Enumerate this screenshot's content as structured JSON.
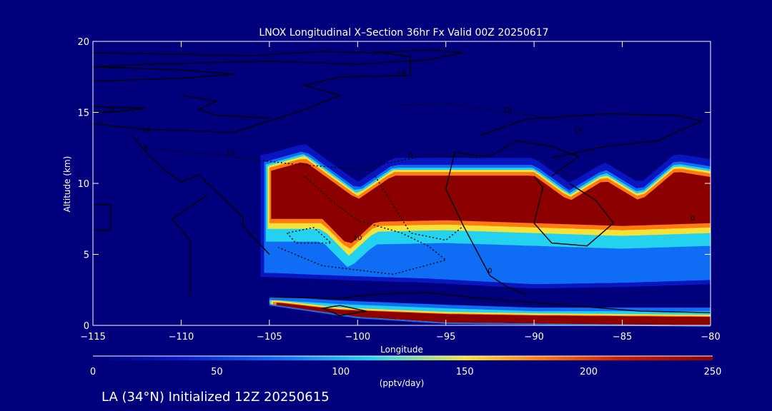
{
  "chart_data": {
    "type": "heatmap",
    "title": "LNOX Longitudinal X–Section 36hr  Fx Valid 00Z 20250617",
    "xlabel": "Longitude",
    "ylabel": "Altitude (km)",
    "xlim": [
      -115,
      -80
    ],
    "ylim": [
      0,
      20
    ],
    "xticks": [
      -115,
      -110,
      -105,
      -100,
      -95,
      -90,
      -85,
      -80
    ],
    "xtick_labels": [
      "−115",
      "−110",
      "−105",
      "−100",
      "−95",
      "−90",
      "−85",
      "−80"
    ],
    "yticks": [
      0,
      5,
      10,
      15,
      20
    ],
    "ytick_labels": [
      "0",
      "5",
      "10",
      "15",
      "20"
    ],
    "colorbar": {
      "min": 0,
      "max": 250,
      "ticks": [
        0,
        50,
        100,
        150,
        200,
        250
      ],
      "tick_labels": [
        "0",
        "50",
        "100",
        "150",
        "200",
        "250"
      ],
      "label": "(pptv/day)"
    },
    "field_colors": {
      "background": "#00007c",
      "low": "#0a18c8",
      "mid_blue": "#0f6cf5",
      "cyan": "#22d2ee",
      "yellow": "#f4e23a",
      "orange": "#ff7a10",
      "high": "#8c0000"
    },
    "upper_plume": {
      "lon_start": -105.3,
      "lon_end": -80,
      "top_km": [
        [
          -105.3,
          11.5
        ],
        [
          -103,
          12.3
        ],
        [
          -100,
          9.6
        ],
        [
          -98,
          11.3
        ],
        [
          -90,
          11.3
        ],
        [
          -88,
          9.5
        ],
        [
          -86,
          11.0
        ],
        [
          -84,
          9.5
        ],
        [
          -82,
          11.6
        ],
        [
          -80,
          11.2
        ]
      ],
      "core_bottom_km": [
        [
          -105.3,
          7.5
        ],
        [
          -102,
          7.5
        ],
        [
          -100.5,
          5.6
        ],
        [
          -99,
          7.3
        ],
        [
          -95,
          7.4
        ],
        [
          -85,
          7.0
        ],
        [
          -80,
          7.2
        ]
      ],
      "halo_bottom_km": [
        [
          -105,
          3.7
        ],
        [
          -101,
          3.5
        ],
        [
          -96,
          3.3
        ],
        [
          -90,
          2.9
        ],
        [
          -85,
          3.0
        ],
        [
          -80,
          3.2
        ]
      ]
    },
    "boundary_layer": {
      "lon_start": -105,
      "lon_end": -80,
      "top_km": [
        [
          -105,
          1.8
        ],
        [
          -101,
          1.5
        ],
        [
          -95,
          1.2
        ],
        [
          -90,
          1.0
        ],
        [
          -85,
          1.0
        ],
        [
          -80,
          1.0
        ]
      ],
      "core_top_km": [
        [
          -104.5,
          1.6
        ],
        [
          -101,
          1.1
        ],
        [
          -95,
          0.8
        ],
        [
          -90,
          0.7
        ],
        [
          -80,
          0.6
        ]
      ],
      "bottom_km": [
        [
          -105,
          1.5
        ],
        [
          -100,
          0.6
        ],
        [
          -95,
          0.2
        ],
        [
          -80,
          0.0
        ]
      ]
    },
    "contour_labels": [
      "18",
      "15",
      "14",
      "12",
      "15",
      "14",
      "10",
      "0",
      "0",
      "0",
      "0"
    ]
  },
  "footer": {
    "caption": "LA (34°N) Initialized 12Z 20250615"
  }
}
